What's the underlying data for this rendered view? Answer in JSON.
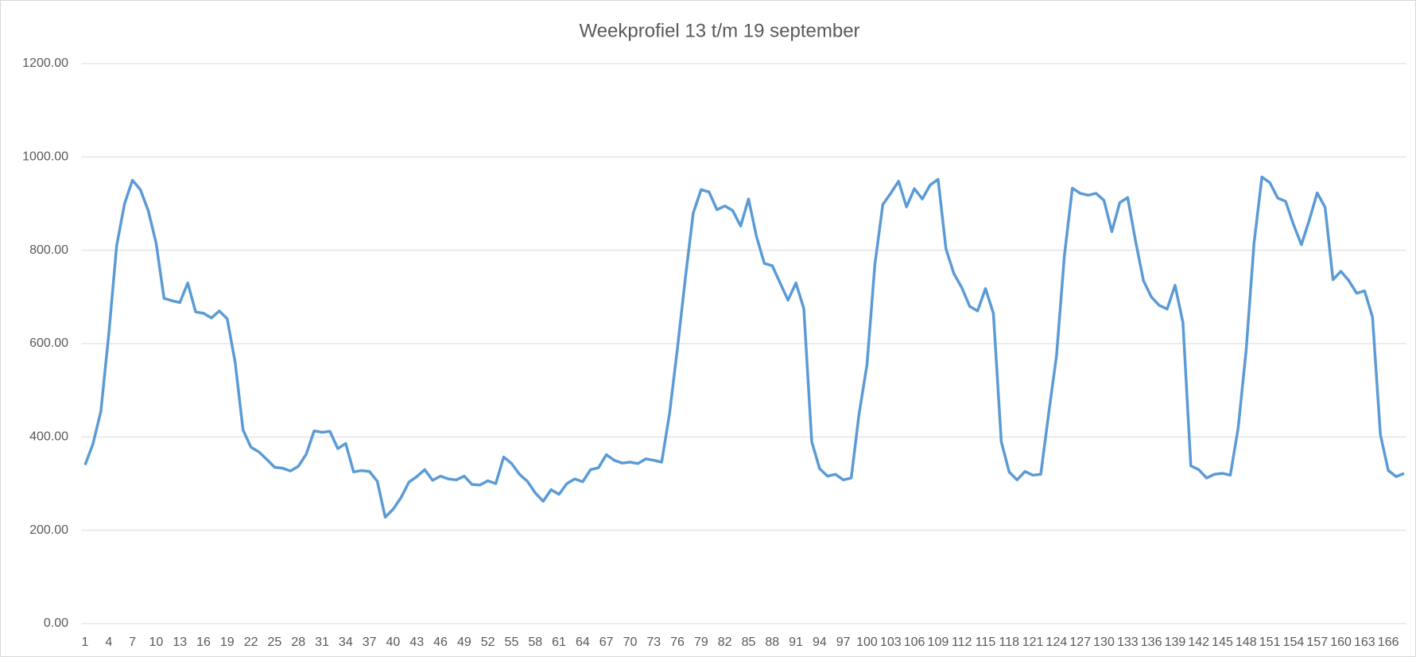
{
  "chart_data": {
    "type": "line",
    "title": "Weekprofiel 13 t/m 19 september",
    "categories": [
      1,
      null,
      null,
      4,
      null,
      null,
      7,
      null,
      null,
      10,
      null,
      null,
      13,
      null,
      null,
      16,
      null,
      null,
      19,
      null,
      null,
      22,
      null,
      null,
      25,
      null,
      null,
      28,
      null,
      null,
      31,
      null,
      null,
      34,
      null,
      null,
      37,
      null,
      null,
      40,
      null,
      null,
      43,
      null,
      null,
      46,
      null,
      null,
      49,
      null,
      null,
      52,
      null,
      null,
      55,
      null,
      null,
      58,
      null,
      null,
      61,
      null,
      null,
      64,
      null,
      null,
      67,
      null,
      null,
      70,
      null,
      null,
      73,
      null,
      null,
      76,
      null,
      null,
      79,
      null,
      null,
      82,
      null,
      null,
      85,
      null,
      null,
      88,
      null,
      null,
      91,
      null,
      null,
      94,
      null,
      null,
      97,
      null,
      null,
      100,
      null,
      null,
      103,
      null,
      null,
      106,
      null,
      null,
      109,
      null,
      null,
      112,
      null,
      null,
      115,
      null,
      null,
      118,
      null,
      null,
      121,
      null,
      null,
      124,
      null,
      null,
      127,
      null,
      null,
      130,
      null,
      null,
      133,
      null,
      null,
      136,
      null,
      null,
      139,
      null,
      null,
      142,
      null,
      null,
      145,
      null,
      null,
      148,
      null,
      null,
      151,
      null,
      null,
      154,
      null,
      null,
      157,
      null,
      null,
      160,
      null,
      null,
      163,
      null,
      null,
      166,
      null,
      null
    ],
    "series": [
      {
        "name": "Weekprofiel",
        "color": "#5b9bd5",
        "values": [
          340,
          385,
          455,
          620,
          810,
          900,
          950,
          930,
          885,
          815,
          697,
          692,
          688,
          730,
          668,
          665,
          655,
          670,
          653,
          560,
          415,
          378,
          368,
          352,
          335,
          333,
          327,
          337,
          363,
          413,
          410,
          412,
          375,
          386,
          325,
          328,
          326,
          305,
          228,
          245,
          270,
          303,
          315,
          330,
          307,
          316,
          310,
          308,
          316,
          298,
          297,
          306,
          300,
          357,
          343,
          320,
          305,
          280,
          262,
          287,
          277,
          300,
          310,
          304,
          330,
          334,
          362,
          350,
          344,
          346,
          343,
          353,
          350,
          346,
          450,
          590,
          740,
          880,
          930,
          925,
          887,
          895,
          885,
          852,
          910,
          830,
          772,
          767,
          730,
          693,
          730,
          675,
          390,
          332,
          316,
          320,
          308,
          312,
          450,
          555,
          770,
          898,
          922,
          948,
          893,
          932,
          910,
          940,
          952,
          803,
          750,
          720,
          680,
          670,
          718,
          665,
          390,
          325,
          308,
          326,
          318,
          320,
          450,
          575,
          790,
          933,
          922,
          918,
          922,
          907,
          840,
          902,
          913,
          820,
          735,
          700,
          682,
          674,
          725,
          645,
          338,
          330,
          312,
          320,
          322,
          318,
          420,
          585,
          815,
          957,
          945,
          912,
          905,
          855,
          812,
          865,
          923,
          892,
          737,
          755,
          735,
          708,
          713,
          657,
          405,
          328,
          315,
          322
        ]
      }
    ],
    "ylim": [
      0,
      1200
    ],
    "yticks": [
      {
        "value": 0,
        "label": "0.00"
      },
      {
        "value": 200,
        "label": "200.00"
      },
      {
        "value": 400,
        "label": "400.00"
      },
      {
        "value": 600,
        "label": "600.00"
      },
      {
        "value": 800,
        "label": "800.00"
      },
      {
        "value": 1000,
        "label": "1000.00"
      },
      {
        "value": 1200,
        "label": "1200.00"
      }
    ],
    "grid": true
  }
}
